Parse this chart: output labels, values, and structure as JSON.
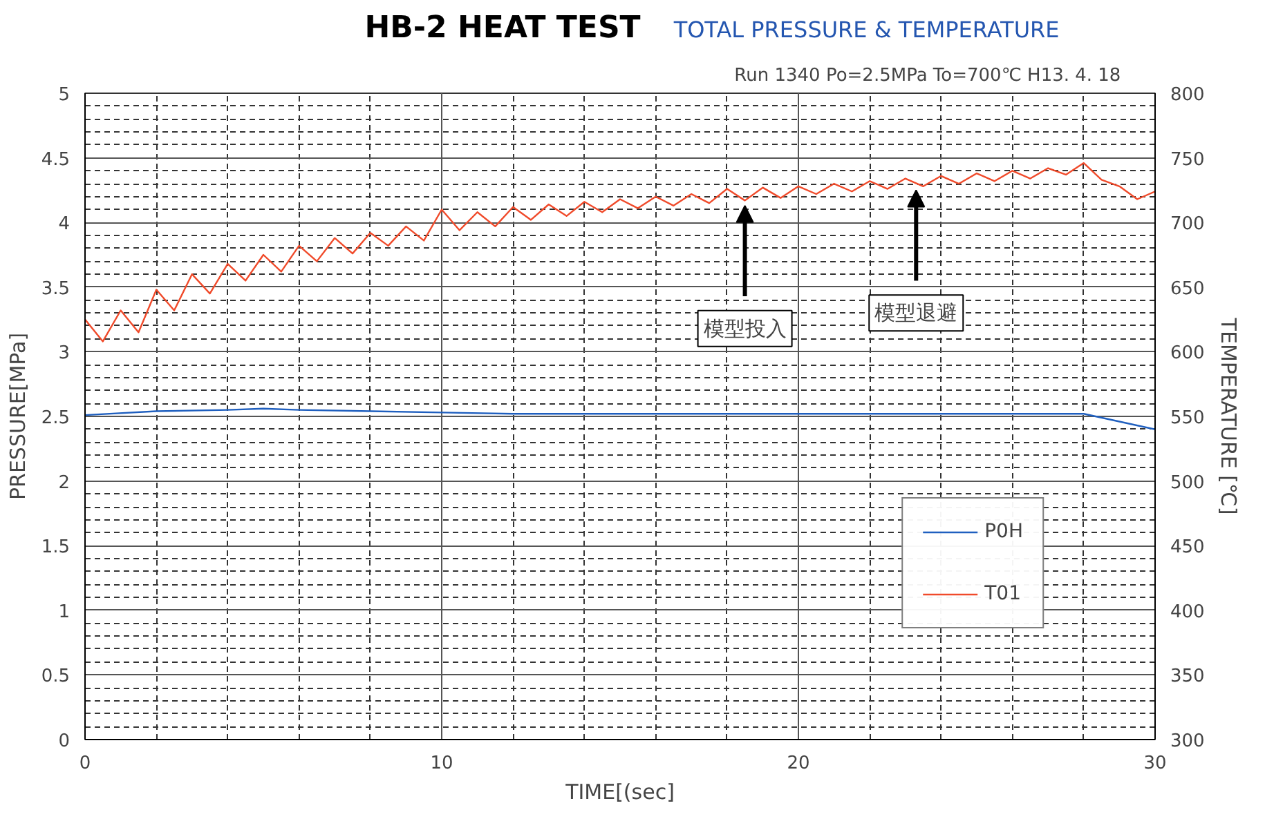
{
  "chart_data": {
    "type": "line",
    "title": "HB-2 HEAT TEST",
    "subtitle": "TOTAL PRESSURE & TEMPERATURE",
    "xlabel": "TIME[(sec]",
    "ylabel": "PRESSURE[MPa]",
    "y2label": "TEMPERATURE [℃]",
    "xlim": [
      0,
      30
    ],
    "xticks": [
      0,
      10,
      20,
      30
    ],
    "ylim": [
      0,
      5
    ],
    "yticks": [
      0,
      0.5,
      1,
      1.5,
      2,
      2.5,
      3,
      3.5,
      4,
      4.5,
      5
    ],
    "y2lim": [
      300,
      800
    ],
    "y2ticks": [
      300,
      350,
      400,
      450,
      500,
      550,
      600,
      650,
      700,
      750,
      800
    ],
    "grid": true,
    "legend": "bottom right",
    "line_style": "solid",
    "annotations": [
      "Run 1340   Po=2.5MPa   To=700℃   H13. 4. 18",
      {
        "text": "模型投入",
        "x": 18.5,
        "y": 4.13
      },
      {
        "text": "模型退避",
        "x": 23.3,
        "y": 4.25
      }
    ],
    "series": [
      {
        "name": "P0H",
        "color": "#1f5fbf",
        "x": [
          0,
          2,
          4,
          5,
          6,
          8,
          10,
          12,
          14,
          20,
          28,
          30
        ],
        "values": [
          2.51,
          2.54,
          2.55,
          2.56,
          2.55,
          2.54,
          2.53,
          2.52,
          2.52,
          2.52,
          2.52,
          2.4
        ]
      },
      {
        "name": "T01",
        "color": "#f04a2a",
        "axis": "y2",
        "x": [
          0,
          0.5,
          1,
          1.5,
          2,
          2.5,
          3,
          3.5,
          4,
          4.5,
          5,
          5.5,
          6,
          6.5,
          7,
          7.5,
          8,
          8.5,
          9,
          9.5,
          10,
          10.5,
          11,
          11.5,
          12,
          12.5,
          13,
          13.5,
          14,
          14.5,
          15,
          15.5,
          16,
          16.5,
          17,
          17.5,
          18,
          18.5,
          19,
          19.5,
          20,
          20.5,
          21,
          21.5,
          22,
          22.5,
          23,
          23.5,
          24,
          24.5,
          25,
          25.5,
          26,
          26.5,
          27,
          27.5,
          28,
          28.5,
          29,
          29.5,
          30
        ],
        "values": [
          625,
          608,
          632,
          615,
          648,
          632,
          660,
          645,
          668,
          655,
          675,
          662,
          682,
          670,
          688,
          676,
          692,
          682,
          697,
          686,
          710,
          694,
          708,
          697,
          712,
          702,
          714,
          705,
          716,
          708,
          718,
          711,
          720,
          713,
          722,
          715,
          726,
          717,
          727,
          719,
          728,
          722,
          730,
          724,
          732,
          726,
          734,
          728,
          736,
          730,
          738,
          732,
          740,
          734,
          742,
          737,
          746,
          733,
          728,
          718,
          724
        ]
      }
    ]
  }
}
